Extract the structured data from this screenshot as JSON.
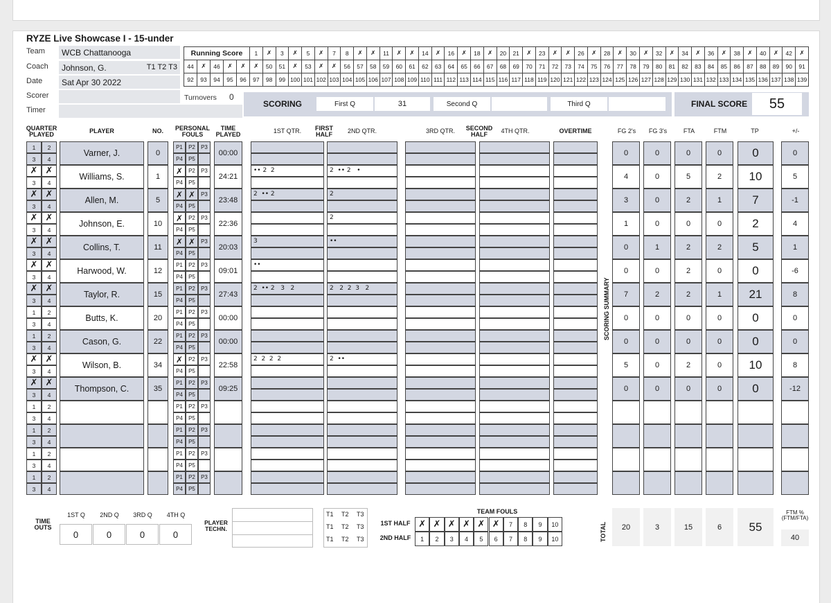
{
  "header": {
    "title": "RYZE Live Showcase I - 15-under",
    "team_label": "Team",
    "team": "WCB Chattanooga",
    "coach_label": "Coach",
    "coach": "Johnson, G.",
    "timeouts_label": "T1  T2  T3",
    "date_label": "Date",
    "date": "Sat Apr 30 2022",
    "scorer_label": "Scorer",
    "timer_label": "Timer",
    "turnovers_label": "Turnovers",
    "turnovers": "0"
  },
  "running_score": {
    "label": "Running Score",
    "row1": [
      "1",
      "X",
      "3",
      "X",
      "5",
      "X",
      "7",
      "8",
      "X",
      "X",
      "11",
      "X",
      "X",
      "14",
      "X",
      "16",
      "X",
      "18",
      "X",
      "20",
      "21",
      "X",
      "23",
      "X",
      "X",
      "26",
      "X",
      "28",
      "X",
      "30",
      "X",
      "32",
      "X",
      "34",
      "X",
      "36",
      "X",
      "38",
      "X",
      "40",
      "X",
      "42",
      "X"
    ],
    "row2": [
      "44",
      "X",
      "46",
      "X",
      "X",
      "X",
      "50",
      "51",
      "X",
      "53",
      "X",
      "X",
      "56",
      "57",
      "58",
      "59",
      "60",
      "61",
      "62",
      "63",
      "64",
      "65",
      "66",
      "67",
      "68",
      "69",
      "70",
      "71",
      "72",
      "73",
      "74",
      "75",
      "76",
      "77",
      "78",
      "79",
      "80",
      "81",
      "82",
      "83",
      "84",
      "85",
      "86",
      "87",
      "88",
      "89",
      "90",
      "91"
    ],
    "row3": [
      "92",
      "93",
      "94",
      "95",
      "96",
      "97",
      "98",
      "99",
      "100",
      "101",
      "102",
      "103",
      "104",
      "105",
      "106",
      "107",
      "108",
      "109",
      "110",
      "111",
      "112",
      "113",
      "114",
      "115",
      "116",
      "117",
      "118",
      "119",
      "120",
      "121",
      "122",
      "123",
      "124",
      "125",
      "126",
      "127",
      "128",
      "129",
      "130",
      "131",
      "132",
      "133",
      "134",
      "135",
      "136",
      "137",
      "138",
      "139"
    ]
  },
  "scoring": {
    "label": "SCORING",
    "first_q_label": "First Q",
    "first_q": "31",
    "second_q_label": "Second Q",
    "second_q": "",
    "third_q_label": "Third Q",
    "third_q": "",
    "final_label": "FINAL SCORE",
    "final": "55"
  },
  "columns": {
    "quarter_played": "QUARTER\nPLAYED",
    "player": "PLAYER",
    "no": "NO.",
    "fouls": "PERSONAL\nFOULS",
    "time": "TIME\nPLAYED",
    "q1": "1ST QTR.",
    "first_half": "FIRST\nHALF",
    "q2": "2ND QTR.",
    "q3": "3RD QTR.",
    "second_half": "SECOND\nHALF",
    "q4": "4TH QTR.",
    "ot": "OVERTIME",
    "fg2": "FG 2's",
    "fg3": "FG 3's",
    "fta": "FTA",
    "ftm": "FTM",
    "tp": "TP",
    "pm": "+/-",
    "scoring_summary": "SCORING SUMMARY"
  },
  "players": [
    {
      "q": [
        "1",
        "2",
        "3",
        "4"
      ],
      "name": "Varner, J.",
      "no": "0",
      "fouls": [
        "P1",
        "P2",
        "P3",
        "P4",
        "P5"
      ],
      "time": "00:00",
      "q1": "",
      "q2": "",
      "fg2": "0",
      "fg3": "0",
      "fta": "0",
      "ftm": "0",
      "tp": "0",
      "pm": "0"
    },
    {
      "q": [
        "X",
        "X",
        "3",
        "4"
      ],
      "name": "Williams, S.",
      "no": "1",
      "fouls": [
        "X",
        "P2",
        "P3",
        "P4",
        "P5"
      ],
      "time": "24:21",
      "q1": "•• 2  2",
      "q2": "2  •• 2   •",
      "fg2": "4",
      "fg3": "0",
      "fta": "5",
      "ftm": "2",
      "tp": "10",
      "pm": "5"
    },
    {
      "q": [
        "X",
        "X",
        "3",
        "4"
      ],
      "name": "Allen, M.",
      "no": "5",
      "fouls": [
        "X",
        "X",
        "P3",
        "P4",
        "P5"
      ],
      "time": "23:48",
      "q1": "2  •• 2",
      "q2": "2",
      "fg2": "3",
      "fg3": "0",
      "fta": "2",
      "ftm": "1",
      "tp": "7",
      "pm": "-1"
    },
    {
      "q": [
        "X",
        "X",
        "3",
        "4"
      ],
      "name": "Johnson, E.",
      "no": "10",
      "fouls": [
        "X",
        "P2",
        "P3",
        "P4",
        "P5"
      ],
      "time": "22:36",
      "q1": "",
      "q2": "2",
      "fg2": "1",
      "fg3": "0",
      "fta": "0",
      "ftm": "0",
      "tp": "2",
      "pm": "4"
    },
    {
      "q": [
        "X",
        "X",
        "3",
        "4"
      ],
      "name": "Collins, T.",
      "no": "11",
      "fouls": [
        "X",
        "X",
        "P3",
        "P4",
        "P5"
      ],
      "time": "20:03",
      "q1": "3",
      "q2": "••",
      "fg2": "0",
      "fg3": "1",
      "fta": "2",
      "ftm": "2",
      "tp": "5",
      "pm": "1"
    },
    {
      "q": [
        "X",
        "X",
        "3",
        "4"
      ],
      "name": "Harwood, W.",
      "no": "12",
      "fouls": [
        "P1",
        "P2",
        "P3",
        "P4",
        "P5"
      ],
      "time": "09:01",
      "q1": "••",
      "q2": "",
      "fg2": "0",
      "fg3": "0",
      "fta": "2",
      "ftm": "0",
      "tp": "0",
      "pm": "-6"
    },
    {
      "q": [
        "X",
        "X",
        "3",
        "4"
      ],
      "name": "Taylor, R.",
      "no": "15",
      "fouls": [
        "P1",
        "P2",
        "P3",
        "P4",
        "P5"
      ],
      "time": "27:43",
      "q1": "2  •• 2   3   2",
      "q2": "2   2  2  3   2",
      "fg2": "7",
      "fg3": "2",
      "fta": "2",
      "ftm": "1",
      "tp": "21",
      "pm": "8"
    },
    {
      "q": [
        "1",
        "2",
        "3",
        "4"
      ],
      "name": "Butts, K.",
      "no": "20",
      "fouls": [
        "P1",
        "P2",
        "P3",
        "P4",
        "P5"
      ],
      "time": "00:00",
      "q1": "",
      "q2": "",
      "fg2": "0",
      "fg3": "0",
      "fta": "0",
      "ftm": "0",
      "tp": "0",
      "pm": "0"
    },
    {
      "q": [
        "1",
        "2",
        "3",
        "4"
      ],
      "name": "Cason, G.",
      "no": "22",
      "fouls": [
        "P1",
        "P2",
        "P3",
        "P4",
        "P5"
      ],
      "time": "00:00",
      "q1": "",
      "q2": "",
      "fg2": "0",
      "fg3": "0",
      "fta": "0",
      "ftm": "0",
      "tp": "0",
      "pm": "0"
    },
    {
      "q": [
        "X",
        "X",
        "3",
        "4"
      ],
      "name": "Wilson, B.",
      "no": "34",
      "fouls": [
        "X",
        "P2",
        "P3",
        "P4",
        "P5"
      ],
      "time": "22:58",
      "q1": "2  2  2  2",
      "q2": "2  ••",
      "fg2": "5",
      "fg3": "0",
      "fta": "2",
      "ftm": "0",
      "tp": "10",
      "pm": "8"
    },
    {
      "q": [
        "X",
        "X",
        "3",
        "4"
      ],
      "name": "Thompson, C.",
      "no": "35",
      "fouls": [
        "P1",
        "P2",
        "P3",
        "P4",
        "P5"
      ],
      "time": "09:25",
      "q1": "",
      "q2": "",
      "fg2": "0",
      "fg3": "0",
      "fta": "0",
      "ftm": "0",
      "tp": "0",
      "pm": "-12"
    },
    {
      "q": [
        "1",
        "2",
        "3",
        "4"
      ],
      "name": "",
      "no": "",
      "fouls": [
        "P1",
        "P2",
        "P3",
        "P4",
        "P5"
      ],
      "time": "",
      "q1": "",
      "q2": "",
      "fg2": "",
      "fg3": "",
      "fta": "",
      "ftm": "",
      "tp": "",
      "pm": ""
    },
    {
      "q": [
        "1",
        "2",
        "3",
        "4"
      ],
      "name": "",
      "no": "",
      "fouls": [
        "P1",
        "P2",
        "P3",
        "P4",
        "P5"
      ],
      "time": "",
      "q1": "",
      "q2": "",
      "fg2": "",
      "fg3": "",
      "fta": "",
      "ftm": "",
      "tp": "",
      "pm": ""
    },
    {
      "q": [
        "1",
        "2",
        "3",
        "4"
      ],
      "name": "",
      "no": "",
      "fouls": [
        "P1",
        "P2",
        "P3",
        "P4",
        "P5"
      ],
      "time": "",
      "q1": "",
      "q2": "",
      "fg2": "",
      "fg3": "",
      "fta": "",
      "ftm": "",
      "tp": "",
      "pm": ""
    },
    {
      "q": [
        "1",
        "2",
        "3",
        "4"
      ],
      "name": "",
      "no": "",
      "fouls": [
        "P1",
        "P2",
        "P3",
        "P4",
        "P5"
      ],
      "time": "",
      "q1": "",
      "q2": "",
      "fg2": "",
      "fg3": "",
      "fta": "",
      "ftm": "",
      "tp": "",
      "pm": ""
    }
  ],
  "footer": {
    "timeouts_label": "TIME\nOUTS",
    "timeout_cols": [
      "1ST Q",
      "2ND Q",
      "3RD Q",
      "4TH Q"
    ],
    "timeout_vals": [
      "0",
      "0",
      "0",
      "0"
    ],
    "player_techn_label": "PLAYER\nTECHN.",
    "t_labels": [
      "T1",
      "T2",
      "T3"
    ],
    "team_fouls_label": "TEAM FOULS",
    "first_half_label": "1ST HALF",
    "first_half": [
      "X",
      "X",
      "X",
      "X",
      "X",
      "X",
      "7",
      "8",
      "9",
      "10"
    ],
    "second_half_label": "2ND HALF",
    "second_half": [
      "1",
      "2",
      "3",
      "4",
      "5",
      "6",
      "7",
      "8",
      "9",
      "10"
    ],
    "total_label": "TOTAL",
    "totals": {
      "fg2": "20",
      "fg3": "3",
      "fta": "15",
      "ftm": "6",
      "tp": "55"
    },
    "ftm_pct_label": "FTM %\n(FTM/FTA)",
    "ftm_pct": "40"
  }
}
